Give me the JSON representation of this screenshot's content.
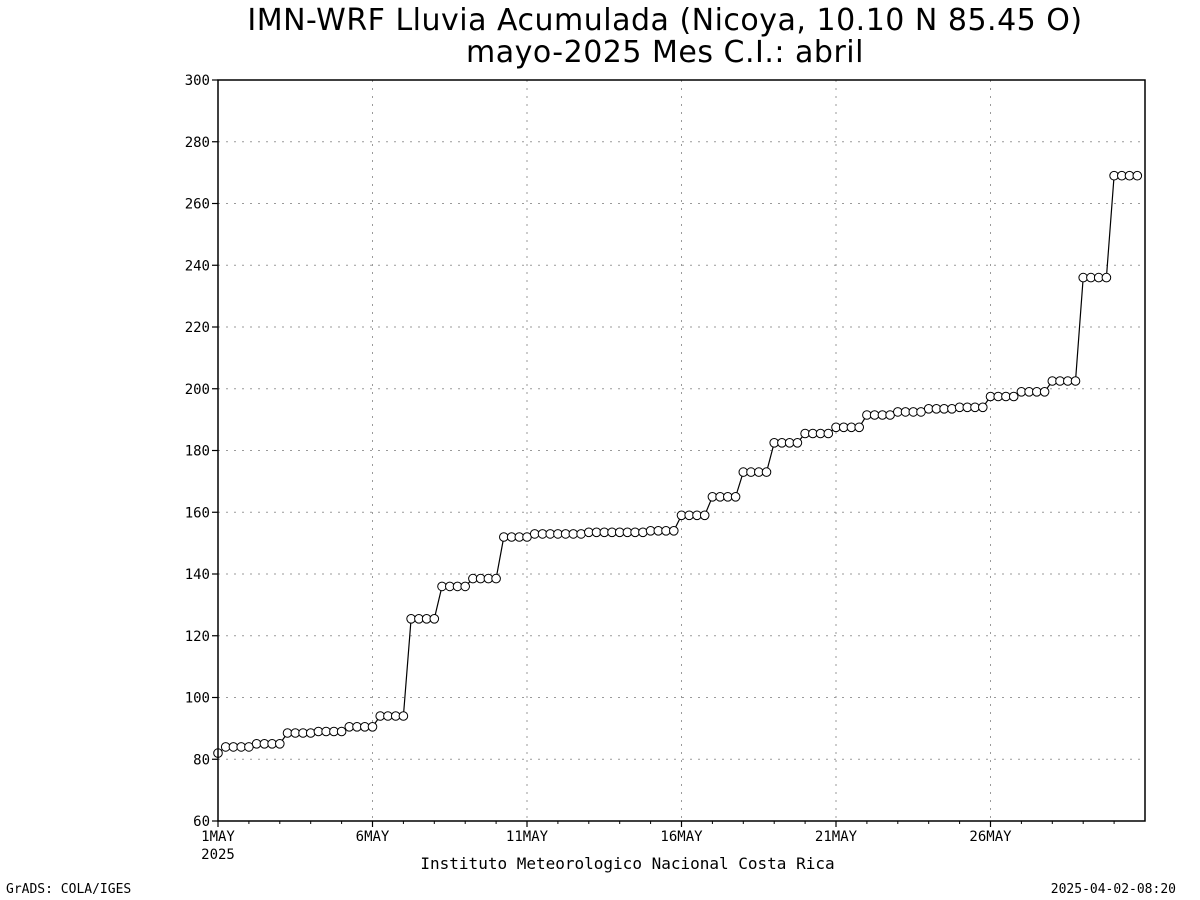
{
  "chart_data": {
    "type": "line",
    "title": "IMN-WRF  Lluvia Acumulada (Nicoya, 10.10  N 85.45  O)",
    "subtitle": "mayo-2025 Mes C.I.: abril",
    "xlabel": "Instituto Meteorologico Nacional Costa Rica",
    "ylabel": "",
    "ylim": [
      60,
      300
    ],
    "yticks": [
      "60",
      "80",
      "100",
      "120",
      "140",
      "160",
      "180",
      "200",
      "220",
      "240",
      "260",
      "280",
      "300"
    ],
    "xlim": [
      1,
      31
    ],
    "xticks": [
      {
        "day": 1,
        "label": "1MAY",
        "sublabel": "2025"
      },
      {
        "day": 6,
        "label": "6MAY",
        "sublabel": ""
      },
      {
        "day": 11,
        "label": "11MAY",
        "sublabel": ""
      },
      {
        "day": 16,
        "label": "16MAY",
        "sublabel": ""
      },
      {
        "day": 21,
        "label": "21MAY",
        "sublabel": ""
      },
      {
        "day": 26,
        "label": "26MAY",
        "sublabel": ""
      }
    ],
    "grid": true,
    "marker": "open-circle",
    "x_step_days": 0.25,
    "values": [
      82,
      84,
      84,
      84,
      84,
      85,
      85,
      85,
      85,
      88.5,
      88.5,
      88.5,
      88.5,
      89,
      89,
      89,
      89,
      90.5,
      90.5,
      90.5,
      90.5,
      94,
      94,
      94,
      94,
      125.5,
      125.5,
      125.5,
      125.5,
      136,
      136,
      136,
      136,
      138.5,
      138.5,
      138.5,
      138.5,
      152,
      152,
      152,
      152,
      153,
      153,
      153,
      153,
      153,
      153,
      153,
      153.5,
      153.5,
      153.5,
      153.5,
      153.5,
      153.5,
      153.5,
      153.5,
      154,
      154,
      154,
      154,
      159,
      159,
      159,
      159,
      165,
      165,
      165,
      165,
      173,
      173,
      173,
      173,
      182.5,
      182.5,
      182.5,
      182.5,
      185.5,
      185.5,
      185.5,
      185.5,
      187.5,
      187.5,
      187.5,
      187.5,
      191.5,
      191.5,
      191.5,
      191.5,
      192.5,
      192.5,
      192.5,
      192.5,
      193.5,
      193.5,
      193.5,
      193.5,
      194,
      194,
      194,
      194,
      197.5,
      197.5,
      197.5,
      197.5,
      199,
      199,
      199,
      199,
      202.5,
      202.5,
      202.5,
      202.5,
      236,
      236,
      236,
      236,
      269,
      269,
      269,
      269
    ]
  },
  "footer": {
    "left": "GrADS: COLA/IGES",
    "right": "2025-04-02-08:20"
  },
  "colors": {
    "line": "#000000",
    "grid": "#9a9a9a",
    "marker_fill": "#ffffff",
    "background": "#ffffff"
  }
}
